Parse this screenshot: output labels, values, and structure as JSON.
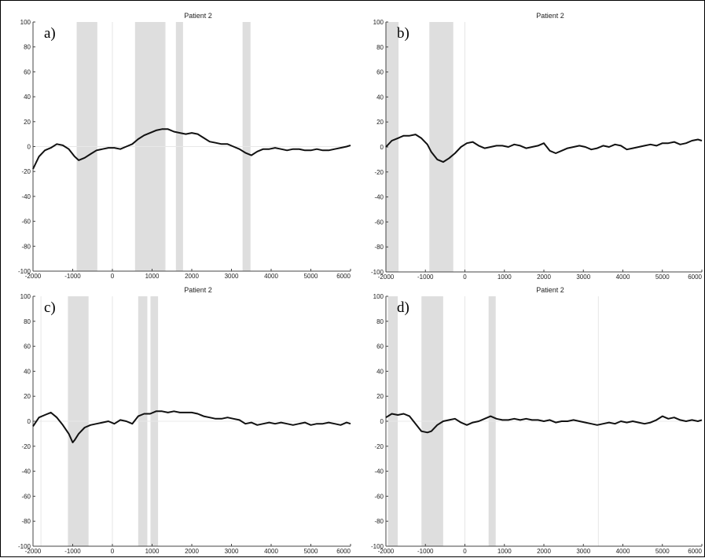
{
  "chart_data": [
    {
      "panel_label": "a)",
      "type": "line",
      "title": "Patient 2",
      "xlim": [
        -2000,
        6000
      ],
      "ylim": [
        -100,
        100
      ],
      "xticks": [
        -2000,
        -1000,
        0,
        1000,
        2000,
        3000,
        4000,
        5000,
        6000
      ],
      "yticks": [
        -100,
        -80,
        -60,
        -40,
        -20,
        0,
        20,
        40,
        60,
        80,
        100
      ],
      "shaded_intervals": [
        [
          -900,
          -380
        ],
        [
          570,
          1330
        ],
        [
          1600,
          1780
        ],
        [
          3280,
          3480
        ]
      ],
      "vertical_lines": [
        0,
        1330
      ],
      "zero_line": true,
      "series": [
        {
          "x": [
            -2000,
            -1850,
            -1700,
            -1550,
            -1400,
            -1250,
            -1100,
            -950,
            -850,
            -700,
            -550,
            -400,
            -250,
            -100,
            50,
            200,
            350,
            500,
            650,
            800,
            950,
            1100,
            1250,
            1400,
            1550,
            1700,
            1850,
            2000,
            2150,
            2300,
            2450,
            2600,
            2750,
            2900,
            3050,
            3200,
            3350,
            3500,
            3650,
            3800,
            3950,
            4100,
            4250,
            4400,
            4550,
            4700,
            4850,
            5000,
            5150,
            5300,
            5450,
            5600,
            5750,
            5900,
            6000
          ],
          "y": [
            -18,
            -8,
            -3,
            -1,
            2,
            1,
            -2,
            -8,
            -11,
            -9,
            -6,
            -3,
            -2,
            -1,
            -1,
            -2,
            0,
            2,
            6,
            9,
            11,
            13,
            14,
            14,
            12,
            11,
            10,
            11,
            10,
            7,
            4,
            3,
            2,
            2,
            0,
            -2,
            -5,
            -7,
            -4,
            -2,
            -2,
            -1,
            -2,
            -3,
            -2,
            -2,
            -3,
            -3,
            -2,
            -3,
            -3,
            -2,
            -1,
            0,
            1
          ]
        }
      ]
    },
    {
      "panel_label": "b)",
      "type": "line",
      "title": "Patient 2",
      "xlim": [
        -2000,
        6000
      ],
      "ylim": [
        -100,
        100
      ],
      "xticks": [
        -2000,
        -1000,
        0,
        1000,
        2000,
        3000,
        4000,
        5000,
        6000
      ],
      "yticks": [
        -100,
        -80,
        -60,
        -40,
        -20,
        0,
        20,
        40,
        60,
        80,
        100
      ],
      "shaded_intervals": [
        [
          -2000,
          -1680
        ],
        [
          -900,
          -300
        ]
      ],
      "vertical_lines": [
        -300,
        0
      ],
      "zero_line": false,
      "series": [
        {
          "x": [
            -2000,
            -1850,
            -1700,
            -1550,
            -1400,
            -1250,
            -1100,
            -950,
            -850,
            -700,
            -550,
            -400,
            -250,
            -100,
            50,
            200,
            350,
            500,
            650,
            800,
            950,
            1100,
            1250,
            1400,
            1550,
            1700,
            1850,
            2000,
            2150,
            2300,
            2450,
            2600,
            2750,
            2900,
            3050,
            3200,
            3350,
            3500,
            3650,
            3800,
            3950,
            4100,
            4250,
            4400,
            4550,
            4700,
            4850,
            5000,
            5150,
            5300,
            5450,
            5600,
            5750,
            5900,
            6000
          ],
          "y": [
            0,
            5,
            7,
            9,
            9,
            10,
            7,
            2,
            -4,
            -10,
            -12,
            -9,
            -5,
            0,
            3,
            4,
            1,
            -1,
            0,
            1,
            1,
            0,
            2,
            1,
            -1,
            0,
            1,
            3,
            -3,
            -5,
            -3,
            -1,
            0,
            1,
            0,
            -2,
            -1,
            1,
            0,
            2,
            1,
            -2,
            -1,
            0,
            1,
            2,
            1,
            3,
            3,
            4,
            2,
            3,
            5,
            6,
            5
          ]
        }
      ]
    },
    {
      "panel_label": "c)",
      "type": "line",
      "title": "Patient 2",
      "xlim": [
        -2000,
        6000
      ],
      "ylim": [
        -100,
        100
      ],
      "xticks": [
        -2000,
        -1000,
        0,
        1000,
        2000,
        3000,
        4000,
        5000,
        6000
      ],
      "yticks": [
        -100,
        -80,
        -60,
        -40,
        -20,
        0,
        20,
        40,
        60,
        80,
        100
      ],
      "shaded_intervals": [
        [
          -1120,
          -600
        ],
        [
          650,
          880
        ],
        [
          960,
          1150
        ]
      ],
      "vertical_lines": [
        -1800,
        0
      ],
      "zero_line": true,
      "series": [
        {
          "x": [
            -2000,
            -1850,
            -1700,
            -1550,
            -1400,
            -1250,
            -1100,
            -1000,
            -950,
            -850,
            -700,
            -550,
            -400,
            -250,
            -100,
            50,
            200,
            350,
            500,
            650,
            800,
            950,
            1100,
            1250,
            1400,
            1550,
            1700,
            1850,
            2000,
            2150,
            2300,
            2450,
            2600,
            2750,
            2900,
            3050,
            3200,
            3350,
            3500,
            3650,
            3800,
            3950,
            4100,
            4250,
            4400,
            4550,
            4700,
            4850,
            5000,
            5150,
            5300,
            5450,
            5600,
            5750,
            5900,
            6000
          ],
          "y": [
            -4,
            3,
            5,
            7,
            3,
            -3,
            -10,
            -17,
            -15,
            -10,
            -5,
            -3,
            -2,
            -1,
            0,
            -2,
            1,
            0,
            -2,
            4,
            6,
            6,
            8,
            8,
            7,
            8,
            7,
            7,
            7,
            6,
            4,
            3,
            2,
            2,
            3,
            2,
            1,
            -2,
            -1,
            -3,
            -2,
            -1,
            -2,
            -1,
            -2,
            -3,
            -2,
            -1,
            -3,
            -2,
            -2,
            -1,
            -2,
            -3,
            -1,
            -2
          ]
        }
      ]
    },
    {
      "panel_label": "d)",
      "type": "line",
      "title": "Patient 2",
      "xlim": [
        -2000,
        6000
      ],
      "ylim": [
        -100,
        100
      ],
      "xticks": [
        -2000,
        -1000,
        0,
        1000,
        2000,
        3000,
        4000,
        5000,
        6000
      ],
      "yticks": [
        -100,
        -80,
        -60,
        -40,
        -20,
        0,
        20,
        40,
        60,
        80,
        100
      ],
      "shaded_intervals": [
        [
          -1950,
          -1700
        ],
        [
          -1100,
          -550
        ],
        [
          600,
          780
        ]
      ],
      "vertical_lines": [
        0,
        3380
      ],
      "zero_line": true,
      "series": [
        {
          "x": [
            -2000,
            -1850,
            -1700,
            -1550,
            -1400,
            -1250,
            -1100,
            -950,
            -850,
            -700,
            -550,
            -400,
            -250,
            -100,
            50,
            200,
            350,
            500,
            650,
            800,
            950,
            1100,
            1250,
            1400,
            1550,
            1700,
            1850,
            2000,
            2150,
            2300,
            2450,
            2600,
            2750,
            2900,
            3050,
            3200,
            3350,
            3500,
            3650,
            3800,
            3950,
            4100,
            4250,
            4400,
            4550,
            4700,
            4850,
            5000,
            5150,
            5300,
            5450,
            5600,
            5750,
            5900,
            6000
          ],
          "y": [
            3,
            6,
            5,
            6,
            4,
            -2,
            -8,
            -9,
            -8,
            -3,
            0,
            1,
            2,
            -1,
            -3,
            -1,
            0,
            2,
            4,
            2,
            1,
            1,
            2,
            1,
            2,
            1,
            1,
            0,
            1,
            -1,
            0,
            0,
            1,
            0,
            -1,
            -2,
            -3,
            -2,
            -1,
            -2,
            0,
            -1,
            0,
            -1,
            -2,
            -1,
            1,
            4,
            2,
            3,
            1,
            0,
            1,
            0,
            1
          ]
        }
      ]
    }
  ]
}
